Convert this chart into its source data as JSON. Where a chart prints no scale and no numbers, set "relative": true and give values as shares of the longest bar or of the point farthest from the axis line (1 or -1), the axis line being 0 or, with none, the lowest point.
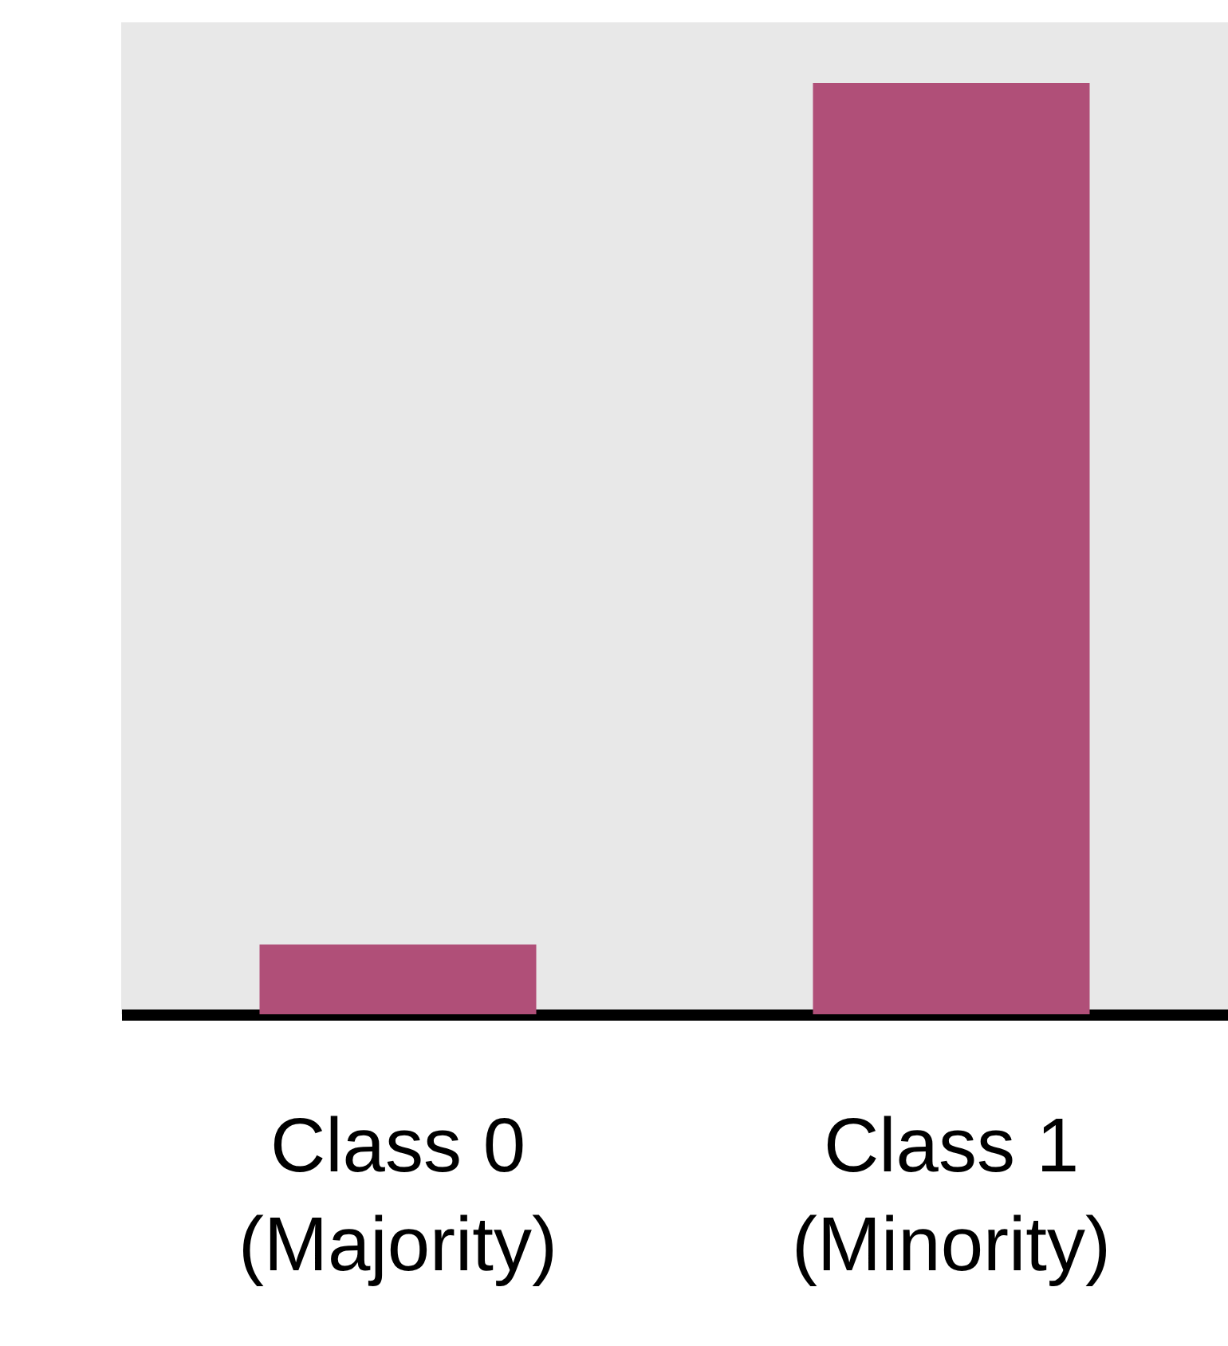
{
  "chart_data": {
    "type": "bar",
    "relative": true,
    "categories": [
      "Class 0\n(Majority)",
      "Class 1\n(Minority)"
    ],
    "values": [
      0.075,
      1
    ],
    "color": "#b04f78",
    "grid": false
  }
}
